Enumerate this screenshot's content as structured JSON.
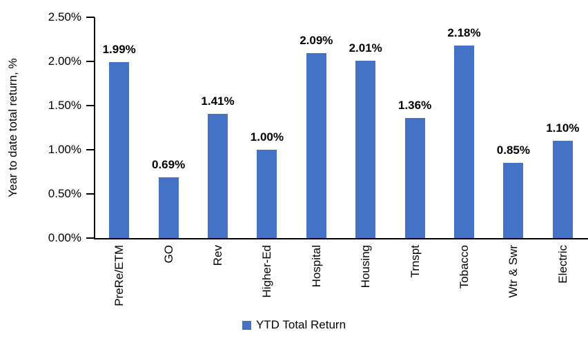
{
  "chart_data": {
    "type": "bar",
    "title": "",
    "xlabel": "",
    "ylabel": "Year to date total return, %",
    "categories": [
      "PreRe/ETM",
      "GO",
      "Rev",
      "Higher-Ed",
      "Hospital",
      "Housing",
      "Trnspt",
      "Tobacco",
      "Wtr & Swr",
      "Electric"
    ],
    "series": [
      {
        "name": "YTD Total Return",
        "values": [
          1.99,
          0.69,
          1.41,
          1.0,
          2.09,
          2.01,
          1.36,
          2.18,
          0.85,
          1.1
        ],
        "data_labels": [
          "1.99%",
          "0.69%",
          "1.41%",
          "1.00%",
          "2.09%",
          "2.01%",
          "1.36%",
          "2.18%",
          "0.85%",
          "1.10%"
        ]
      }
    ],
    "ylim": [
      0,
      2.5
    ],
    "y_ticks": [
      {
        "value": 0.0,
        "label": "0.00%"
      },
      {
        "value": 0.5,
        "label": "0.50%"
      },
      {
        "value": 1.0,
        "label": "1.00%"
      },
      {
        "value": 1.5,
        "label": "1.50%"
      },
      {
        "value": 2.0,
        "label": "2.00%"
      },
      {
        "value": 2.5,
        "label": "2.50%"
      }
    ],
    "grid": false,
    "legend_position": "bottom",
    "colors": {
      "bar_fill": "#4472C4",
      "axis": "#000000",
      "text": "#000000",
      "background": "#FFFFFF"
    }
  },
  "legend": {
    "label": "YTD Total Return",
    "swatch_color": "#4472C4"
  }
}
